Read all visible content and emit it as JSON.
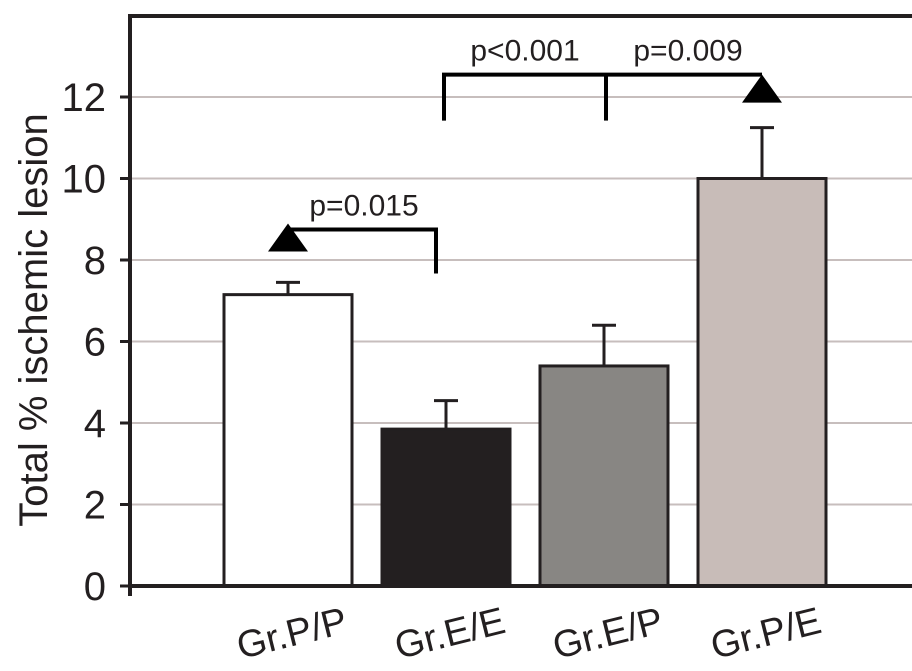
{
  "chart_data": {
    "type": "bar",
    "ylabel": "Total % ischemic lesion",
    "xlabel": "",
    "ylim": [
      0,
      14
    ],
    "yticks": [
      0,
      2,
      4,
      6,
      8,
      10,
      12
    ],
    "ytick_labels": [
      "0",
      "2",
      "4",
      "6",
      "8",
      "10",
      "12"
    ],
    "grid": true,
    "categories": [
      "Gr.P/P",
      "Gr.E/E",
      "Gr.E/P",
      "Gr.P/E"
    ],
    "values": [
      7.15,
      3.85,
      5.4,
      10.0
    ],
    "errors": [
      0.3,
      0.7,
      1.0,
      1.25
    ],
    "bar_colors": [
      "#ffffff",
      "#231f20",
      "#888683",
      "#c8bcb8"
    ],
    "annotations": [
      {
        "label": "p=0.015",
        "from": "Gr.P/P",
        "to": "Gr.E/E",
        "level": 8.75
      },
      {
        "label": "p<0.001",
        "from": "Gr.E/E",
        "to": "Gr.E/P",
        "level": 12.55
      },
      {
        "label": "p=0.009",
        "from": "Gr.E/P",
        "to": "Gr.P/E",
        "level": 12.55
      }
    ]
  }
}
